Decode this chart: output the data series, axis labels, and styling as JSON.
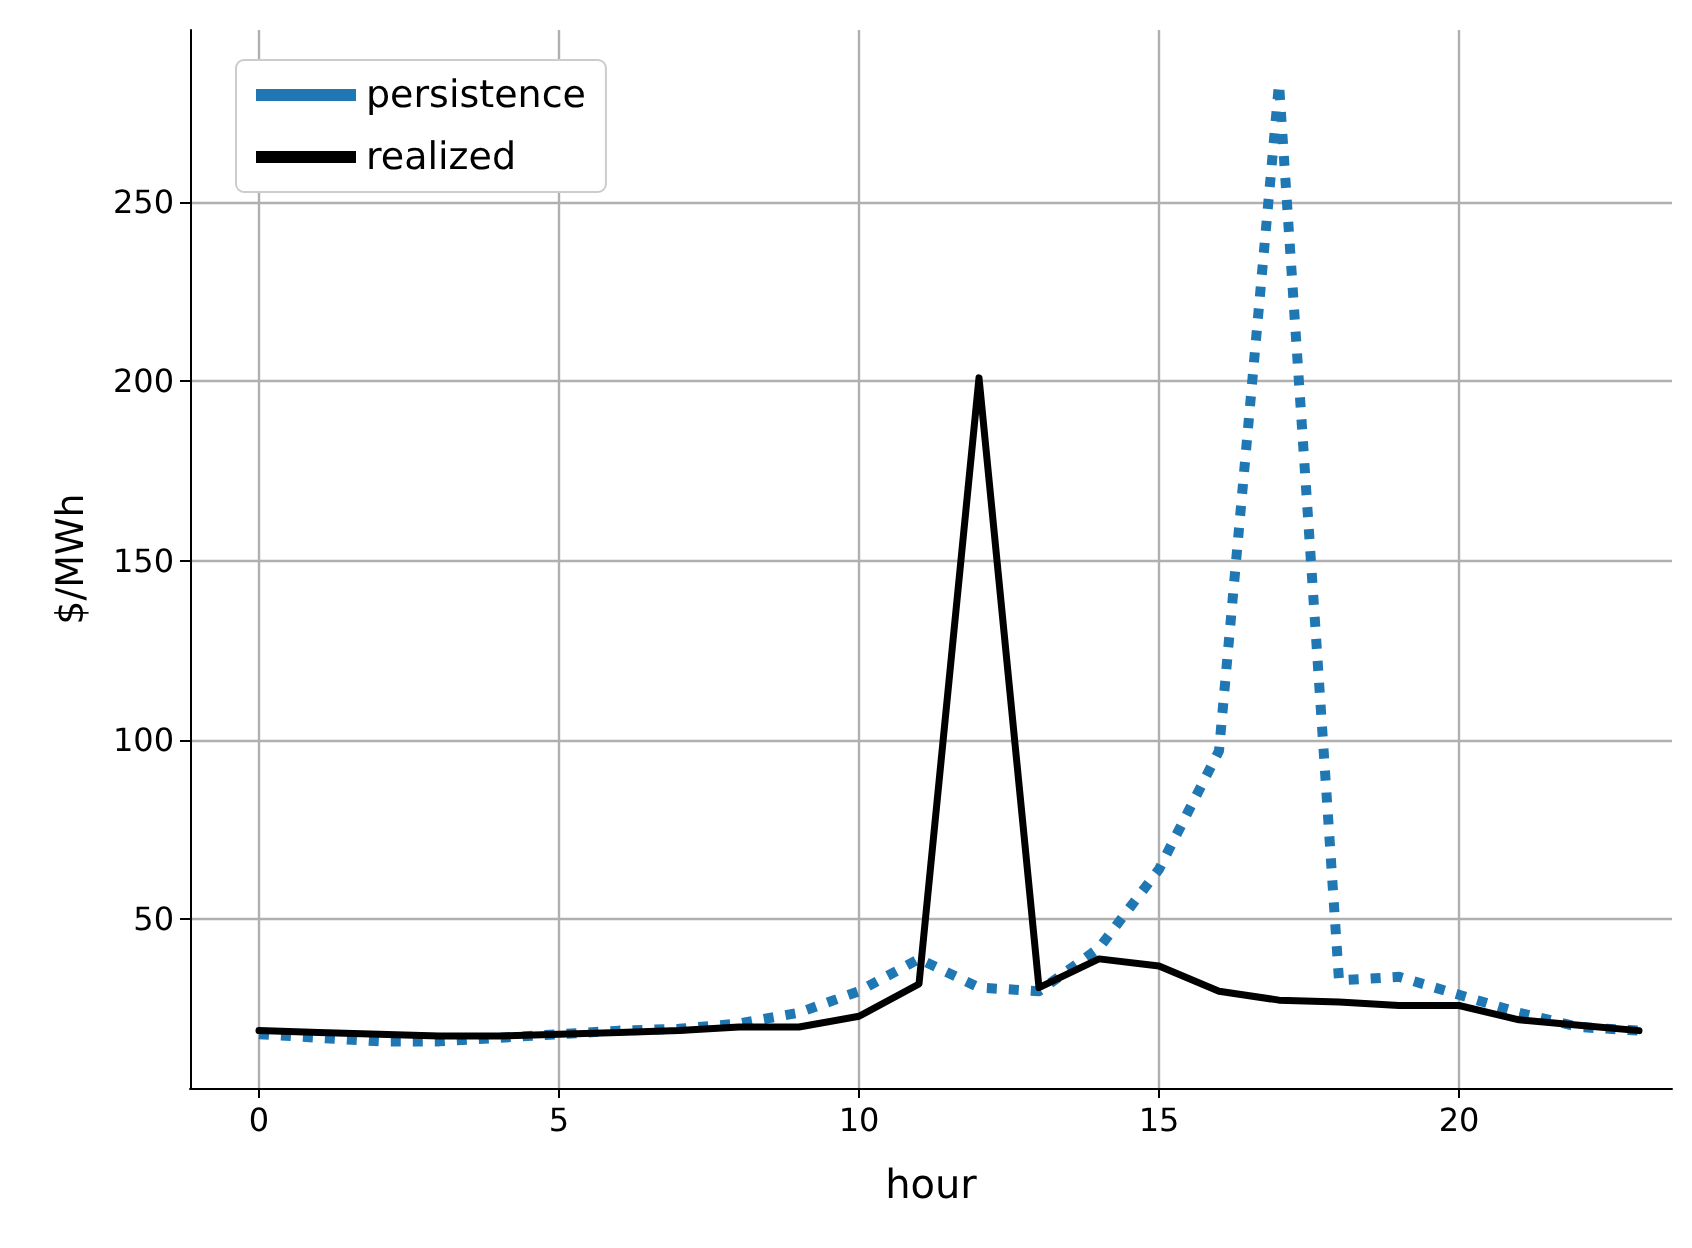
{
  "chart_data": {
    "type": "line",
    "xlabel": "hour",
    "ylabel": "$/MWh",
    "x": [
      0,
      1,
      2,
      3,
      4,
      5,
      6,
      7,
      8,
      9,
      10,
      11,
      12,
      13,
      14,
      15,
      16,
      17,
      18,
      19,
      20,
      21,
      22,
      23
    ],
    "series": [
      {
        "name": "persistence",
        "color": "#1f77b4",
        "line_style": "dotted",
        "values": [
          18,
          17,
          16,
          16,
          17,
          18,
          19,
          19.5,
          21,
          24,
          30,
          39,
          31,
          30,
          42,
          64,
          97,
          283,
          33,
          34,
          29,
          24,
          20,
          19
        ]
      },
      {
        "name": "realized",
        "color": "#000000",
        "line_style": "solid",
        "values": [
          19,
          18.5,
          18,
          17.5,
          17.5,
          18,
          18.5,
          19,
          20,
          20,
          23,
          32,
          201,
          31,
          39,
          37,
          30,
          27.5,
          27,
          26,
          26,
          22,
          20.5,
          19
        ]
      }
    ],
    "xlim": [
      -1.15,
      23.55
    ],
    "ylim": [
      3,
      298
    ],
    "xticks": [
      0,
      5,
      10,
      15,
      20
    ],
    "yticks": [
      50,
      100,
      150,
      200,
      250
    ],
    "grid": true,
    "legend": "top left",
    "marker": "none"
  }
}
